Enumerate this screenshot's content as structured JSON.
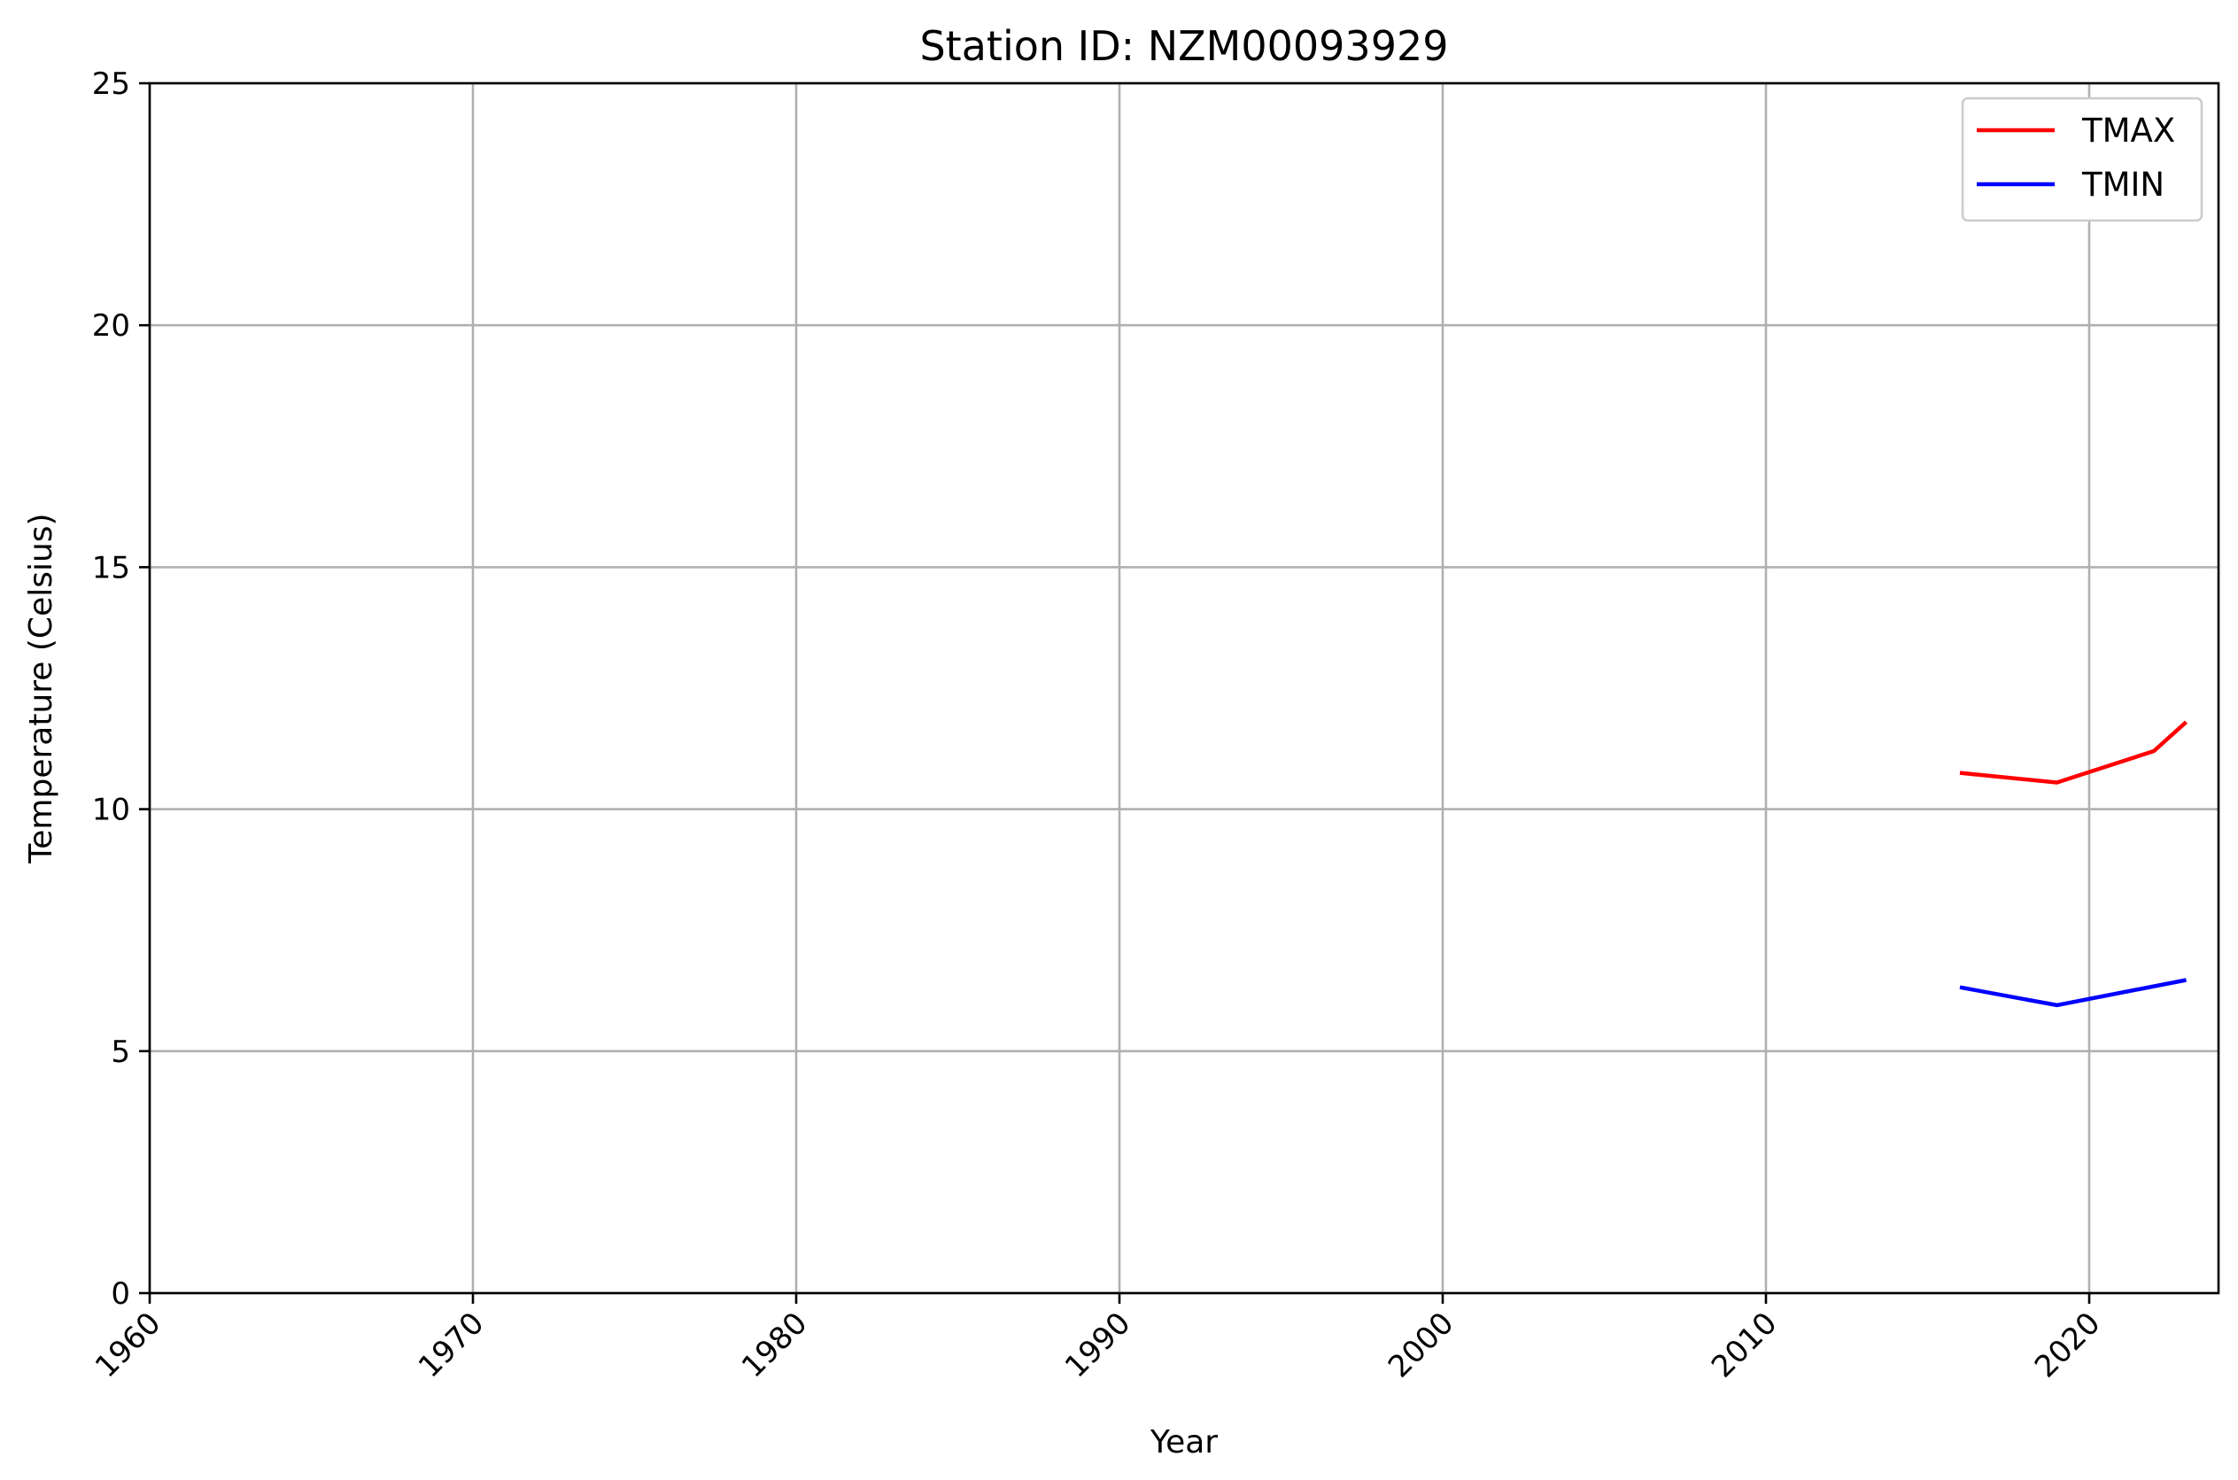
{
  "chart_data": {
    "type": "line",
    "title": "Station ID: NZM00093929",
    "xlabel": "Year",
    "ylabel": "Temperature (Celsius)",
    "xlim": [
      1960,
      2024
    ],
    "ylim": [
      0,
      25
    ],
    "xticks": [
      1960,
      1970,
      1980,
      1990,
      2000,
      2010,
      2020
    ],
    "xtick_labels": [
      "1960",
      "1970",
      "1980",
      "1990",
      "2000",
      "2010",
      "2020"
    ],
    "yticks": [
      0,
      5,
      10,
      15,
      20,
      25
    ],
    "ytick_labels": [
      "0",
      "5",
      "10",
      "15",
      "20",
      "25"
    ],
    "grid": true,
    "legend_position": "top-right",
    "series": [
      {
        "name": "TMAX",
        "color": "#ff0000",
        "points": [
          [
            2016,
            10.75
          ],
          [
            2019,
            10.55
          ],
          [
            2022,
            11.2
          ],
          [
            2023,
            11.8
          ]
        ]
      },
      {
        "name": "TMIN",
        "color": "#0000ff",
        "points": [
          [
            2016,
            6.32
          ],
          [
            2019,
            5.95
          ],
          [
            2023,
            6.47
          ]
        ]
      }
    ]
  }
}
